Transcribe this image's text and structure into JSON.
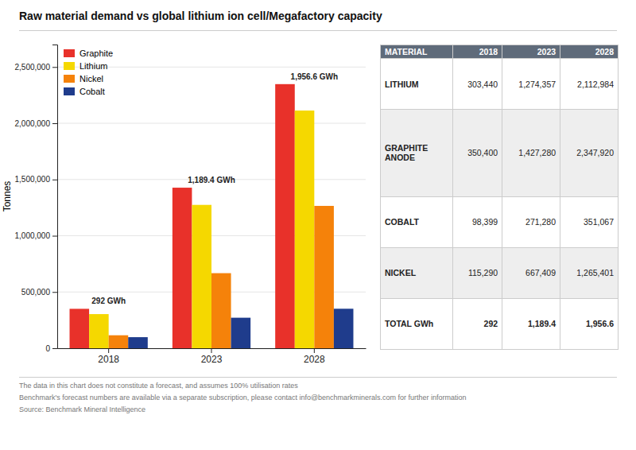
{
  "chart_data": [
    {
      "type": "bar",
      "title": "Raw material demand vs global lithium ion cell/Megafactory capacity",
      "categories": [
        "2018",
        "2023",
        "2028"
      ],
      "series": [
        {
          "name": "Graphite",
          "color": "#e8312a",
          "values": [
            350400,
            1427280,
            2347920
          ]
        },
        {
          "name": "Lithium",
          "color": "#f5d800",
          "values": [
            303440,
            1274357,
            2112984
          ]
        },
        {
          "name": "Nickel",
          "color": "#f5820a",
          "values": [
            115290,
            667409,
            1265401
          ]
        },
        {
          "name": "Cobalt",
          "color": "#1f3c8c",
          "values": [
            98399,
            271280,
            351067
          ]
        }
      ],
      "ylabel": "Tonnes",
      "ylim": [
        0,
        2700000
      ],
      "yticks": [
        0,
        {
          "value": 500000,
          "label": "500,000"
        },
        {
          "value": 1000000,
          "label": "1,000,000"
        },
        {
          "value": 1500000,
          "label": "1,500,000"
        },
        {
          "value": 2000000,
          "label": "2,000,000"
        },
        {
          "value": 2500000,
          "label": "2,500,000"
        }
      ],
      "grid": true,
      "legend": "upper left",
      "annotations": [
        {
          "category": "2018",
          "text": "292 GWh"
        },
        {
          "category": "2023",
          "text": "1,189.4 GWh"
        },
        {
          "category": "2028",
          "text": "1,956.6 GWh"
        }
      ]
    },
    {
      "type": "table",
      "columns": [
        "MATERIAL",
        "2018",
        "2023",
        "2028"
      ],
      "rows": [
        [
          "LITHIUM",
          "303,440",
          "1,274,357",
          "2,112,984"
        ],
        [
          "GRAPHITE\nANODE",
          "350,400",
          "1,427,280",
          "2,347,920"
        ],
        [
          "COBALT",
          "98,399",
          "271,280",
          "351,067"
        ],
        [
          "NICKEL",
          "115,290",
          "667,409",
          "1,265,401"
        ],
        [
          "TOTAL GWh",
          "292",
          "1,189.4",
          "1,956.6"
        ]
      ]
    }
  ],
  "footnotes": [
    "The data in this chart does not constitute a forecast, and assumes 100% utilisation rates",
    "Benchmark's forecast numbers are available via a separate subscription, please contact info@benchmarkminerals.com for further information"
  ],
  "source": "Source: Benchmark Mineral Intelligence"
}
